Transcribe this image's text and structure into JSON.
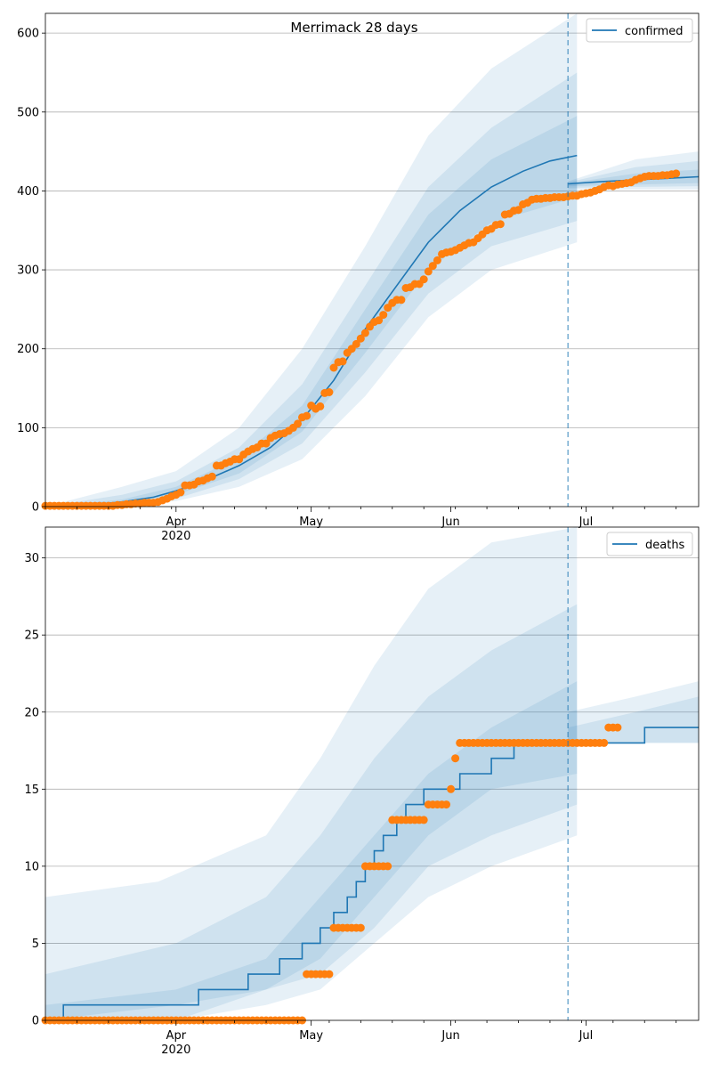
{
  "chart_data": [
    {
      "type": "line",
      "panel": "top",
      "title": "Merrimack 28 days",
      "legend": [
        "confirmed"
      ],
      "legend_position": "top-right",
      "grid": "y",
      "ylim": [
        0,
        625
      ],
      "yticks": [
        0,
        100,
        200,
        300,
        400,
        500,
        600
      ],
      "xlim": [
        "2020-03-03",
        "2020-07-26"
      ],
      "xtick_labels": [
        {
          "date": "2020-04-01",
          "label": "Apr",
          "sub": "2020"
        },
        {
          "date": "2020-05-01",
          "label": "May"
        },
        {
          "date": "2020-06-01",
          "label": "Jun"
        },
        {
          "date": "2020-07-01",
          "label": "Jul"
        }
      ],
      "forecast_start": "2020-06-27",
      "model": {
        "name": "confirmed",
        "points": [
          [
            "2020-03-03",
            0
          ],
          [
            "2020-03-13",
            2
          ],
          [
            "2020-03-20",
            6
          ],
          [
            "2020-03-27",
            12
          ],
          [
            "2020-04-01",
            20
          ],
          [
            "2020-04-07",
            32
          ],
          [
            "2020-04-15",
            52
          ],
          [
            "2020-04-22",
            75
          ],
          [
            "2020-04-29",
            110
          ],
          [
            "2020-05-06",
            160
          ],
          [
            "2020-05-13",
            225
          ],
          [
            "2020-05-20",
            280
          ],
          [
            "2020-05-27",
            335
          ],
          [
            "2020-06-03",
            375
          ],
          [
            "2020-06-10",
            405
          ],
          [
            "2020-06-17",
            425
          ],
          [
            "2020-06-23",
            438
          ],
          [
            "2020-06-29",
            445
          ]
        ]
      },
      "bands": [
        {
          "lower": [
            [
              "2020-03-03",
              0
            ],
            [
              "2020-03-20",
              1
            ],
            [
              "2020-04-01",
              7
            ],
            [
              "2020-04-15",
              25
            ],
            [
              "2020-04-29",
              60
            ],
            [
              "2020-05-13",
              140
            ],
            [
              "2020-05-27",
              240
            ],
            [
              "2020-06-10",
              300
            ],
            [
              "2020-06-29",
              335
            ]
          ],
          "upper": [
            [
              "2020-03-03",
              0
            ],
            [
              "2020-03-20",
              25
            ],
            [
              "2020-04-01",
              45
            ],
            [
              "2020-04-15",
              100
            ],
            [
              "2020-04-29",
              200
            ],
            [
              "2020-05-13",
              330
            ],
            [
              "2020-05-27",
              470
            ],
            [
              "2020-06-10",
              555
            ],
            [
              "2020-06-29",
              625
            ]
          ]
        },
        {
          "lower": [
            [
              "2020-03-03",
              0
            ],
            [
              "2020-03-20",
              2
            ],
            [
              "2020-04-01",
              10
            ],
            [
              "2020-04-15",
              35
            ],
            [
              "2020-04-29",
              80
            ],
            [
              "2020-05-13",
              170
            ],
            [
              "2020-05-27",
              270
            ],
            [
              "2020-06-10",
              330
            ],
            [
              "2020-06-29",
              362
            ]
          ],
          "upper": [
            [
              "2020-03-03",
              0
            ],
            [
              "2020-03-20",
              15
            ],
            [
              "2020-04-01",
              32
            ],
            [
              "2020-04-15",
              75
            ],
            [
              "2020-04-29",
              155
            ],
            [
              "2020-05-13",
              280
            ],
            [
              "2020-05-27",
              405
            ],
            [
              "2020-06-10",
              480
            ],
            [
              "2020-06-29",
              550
            ]
          ]
        },
        {
          "lower": [
            [
              "2020-03-03",
              0
            ],
            [
              "2020-03-20",
              4
            ],
            [
              "2020-04-01",
              15
            ],
            [
              "2020-04-15",
              42
            ],
            [
              "2020-04-29",
              95
            ],
            [
              "2020-05-13",
              195
            ],
            [
              "2020-05-27",
              300
            ],
            [
              "2020-06-10",
              360
            ],
            [
              "2020-06-29",
              392
            ]
          ],
          "upper": [
            [
              "2020-03-03",
              0
            ],
            [
              "2020-03-20",
              9
            ],
            [
              "2020-04-01",
              25
            ],
            [
              "2020-04-15",
              62
            ],
            [
              "2020-04-29",
              128
            ],
            [
              "2020-05-13",
              250
            ],
            [
              "2020-05-27",
              370
            ],
            [
              "2020-06-10",
              440
            ],
            [
              "2020-06-29",
              495
            ]
          ]
        }
      ],
      "forecast": {
        "points": [
          [
            "2020-06-27",
            409
          ],
          [
            "2020-07-05",
            412
          ],
          [
            "2020-07-12",
            414
          ],
          [
            "2020-07-19",
            416
          ],
          [
            "2020-07-26",
            418
          ]
        ],
        "bands": [
          {
            "lower": [
              [
                "2020-06-27",
                402
              ],
              [
                "2020-07-26",
                402
              ]
            ],
            "upper": [
              [
                "2020-06-27",
                412
              ],
              [
                "2020-07-12",
                440
              ],
              [
                "2020-07-26",
                450
              ]
            ]
          },
          {
            "lower": [
              [
                "2020-06-27",
                404
              ],
              [
                "2020-07-26",
                406
              ]
            ],
            "upper": [
              [
                "2020-06-27",
                411
              ],
              [
                "2020-07-12",
                430
              ],
              [
                "2020-07-26",
                438
              ]
            ]
          },
          {
            "lower": [
              [
                "2020-06-27",
                406
              ],
              [
                "2020-07-26",
                410
              ]
            ],
            "upper": [
              [
                "2020-06-27",
                410
              ],
              [
                "2020-07-12",
                422
              ],
              [
                "2020-07-26",
                427
              ]
            ]
          }
        ]
      },
      "observed": {
        "start": "2020-03-03",
        "values": [
          1,
          1,
          1,
          1,
          1,
          1,
          1,
          1,
          1,
          1,
          1,
          1,
          1,
          1,
          1,
          1,
          2,
          2,
          3,
          3,
          4,
          4,
          5,
          5,
          5,
          6,
          8,
          10,
          13,
          15,
          18,
          27,
          27,
          28,
          32,
          33,
          36,
          38,
          52,
          52,
          55,
          57,
          60,
          60,
          66,
          70,
          73,
          75,
          80,
          80,
          87,
          90,
          92,
          93,
          96,
          100,
          105,
          113,
          115,
          128,
          124,
          127,
          144,
          145,
          176,
          183,
          184,
          195,
          200,
          206,
          213,
          220,
          228,
          234,
          236,
          243,
          252,
          258,
          262,
          262,
          277,
          278,
          282,
          282,
          288,
          298,
          305,
          312,
          320,
          322,
          323,
          325,
          328,
          331,
          334,
          335,
          340,
          345,
          350,
          352,
          357,
          358,
          370,
          371,
          375,
          376,
          383,
          385,
          389,
          390,
          390,
          391,
          391,
          392,
          392,
          392,
          393,
          394,
          394,
          396,
          397,
          398,
          400,
          402,
          405,
          407,
          406,
          408,
          409,
          410,
          411,
          414,
          416,
          418,
          419,
          419,
          419,
          420,
          420,
          421,
          422
        ]
      }
    },
    {
      "type": "line",
      "panel": "bottom",
      "legend": [
        "deaths"
      ],
      "legend_position": "top-right",
      "grid": "y",
      "ylim": [
        0,
        32
      ],
      "yticks": [
        0,
        5,
        10,
        15,
        20,
        25,
        30
      ],
      "xlim": [
        "2020-03-03",
        "2020-07-26"
      ],
      "xtick_labels": [
        {
          "date": "2020-04-01",
          "label": "Apr",
          "sub": "2020"
        },
        {
          "date": "2020-05-01",
          "label": "May"
        },
        {
          "date": "2020-06-01",
          "label": "Jun"
        },
        {
          "date": "2020-07-01",
          "label": "Jul"
        }
      ],
      "forecast_start": "2020-06-27",
      "model": {
        "name": "deaths",
        "steps": [
          [
            "2020-03-03",
            0
          ],
          [
            "2020-03-07",
            1
          ],
          [
            "2020-04-06",
            2
          ],
          [
            "2020-04-17",
            3
          ],
          [
            "2020-04-24",
            4
          ],
          [
            "2020-04-29",
            5
          ],
          [
            "2020-05-03",
            6
          ],
          [
            "2020-05-06",
            7
          ],
          [
            "2020-05-09",
            8
          ],
          [
            "2020-05-11",
            9
          ],
          [
            "2020-05-13",
            10
          ],
          [
            "2020-05-15",
            11
          ],
          [
            "2020-05-17",
            12
          ],
          [
            "2020-05-20",
            13
          ],
          [
            "2020-05-22",
            14
          ],
          [
            "2020-05-26",
            15
          ],
          [
            "2020-06-03",
            16
          ],
          [
            "2020-06-10",
            17
          ],
          [
            "2020-06-15",
            18
          ],
          [
            "2020-06-29",
            18
          ]
        ]
      },
      "bands": [
        {
          "lower": [
            [
              "2020-03-03",
              0
            ],
            [
              "2020-04-01",
              0
            ],
            [
              "2020-04-21",
              1
            ],
            [
              "2020-05-03",
              2
            ],
            [
              "2020-05-15",
              5
            ],
            [
              "2020-05-27",
              8
            ],
            [
              "2020-06-10",
              10
            ],
            [
              "2020-06-29",
              12
            ]
          ],
          "upper": [
            [
              "2020-03-03",
              8
            ],
            [
              "2020-03-28",
              9
            ],
            [
              "2020-04-21",
              12
            ],
            [
              "2020-05-03",
              17
            ],
            [
              "2020-05-15",
              23
            ],
            [
              "2020-05-27",
              28
            ],
            [
              "2020-06-10",
              31
            ],
            [
              "2020-06-29",
              32
            ]
          ]
        },
        {
          "lower": [
            [
              "2020-03-03",
              0
            ],
            [
              "2020-04-01",
              0
            ],
            [
              "2020-04-21",
              2
            ],
            [
              "2020-05-03",
              3
            ],
            [
              "2020-05-15",
              6
            ],
            [
              "2020-05-27",
              10
            ],
            [
              "2020-06-10",
              12
            ],
            [
              "2020-06-29",
              14
            ]
          ],
          "upper": [
            [
              "2020-03-03",
              3
            ],
            [
              "2020-04-01",
              5
            ],
            [
              "2020-04-21",
              8
            ],
            [
              "2020-05-03",
              12
            ],
            [
              "2020-05-15",
              17
            ],
            [
              "2020-05-27",
              21
            ],
            [
              "2020-06-10",
              24
            ],
            [
              "2020-06-29",
              27
            ]
          ]
        },
        {
          "lower": [
            [
              "2020-03-03",
              0
            ],
            [
              "2020-04-01",
              1
            ],
            [
              "2020-04-21",
              2
            ],
            [
              "2020-05-03",
              4
            ],
            [
              "2020-05-15",
              8
            ],
            [
              "2020-05-27",
              12
            ],
            [
              "2020-06-10",
              15
            ],
            [
              "2020-06-29",
              16
            ]
          ],
          "upper": [
            [
              "2020-03-03",
              1
            ],
            [
              "2020-04-01",
              2
            ],
            [
              "2020-04-21",
              4
            ],
            [
              "2020-05-03",
              8
            ],
            [
              "2020-05-15",
              12
            ],
            [
              "2020-05-27",
              16
            ],
            [
              "2020-06-10",
              19
            ],
            [
              "2020-06-29",
              22
            ]
          ]
        }
      ],
      "forecast": {
        "steps": [
          [
            "2020-06-27",
            18
          ],
          [
            "2020-07-13",
            18
          ],
          [
            "2020-07-14",
            19
          ],
          [
            "2020-07-26",
            19
          ]
        ],
        "bands": [
          {
            "lower": [
              [
                "2020-06-27",
                18
              ],
              [
                "2020-07-26",
                18
              ]
            ],
            "upper": [
              [
                "2020-06-27",
                20
              ],
              [
                "2020-07-12",
                21
              ],
              [
                "2020-07-26",
                22
              ]
            ]
          },
          {
            "lower": [
              [
                "2020-06-27",
                18
              ],
              [
                "2020-07-26",
                18
              ]
            ],
            "upper": [
              [
                "2020-06-27",
                19
              ],
              [
                "2020-07-12",
                20
              ],
              [
                "2020-07-26",
                21
              ]
            ]
          }
        ]
      },
      "observed_runs": [
        {
          "from": "2020-03-03",
          "to": "2020-04-29",
          "value": 0
        },
        {
          "from": "2020-04-30",
          "to": "2020-05-05",
          "value": 3
        },
        {
          "from": "2020-05-06",
          "to": "2020-05-12",
          "value": 6
        },
        {
          "from": "2020-05-13",
          "to": "2020-05-18",
          "value": 10
        },
        {
          "from": "2020-05-19",
          "to": "2020-05-26",
          "value": 13
        },
        {
          "from": "2020-05-27",
          "to": "2020-05-31",
          "value": 14
        },
        {
          "from": "2020-06-01",
          "to": "2020-06-01",
          "value": 15
        },
        {
          "from": "2020-06-02",
          "to": "2020-06-02",
          "value": 17
        },
        {
          "from": "2020-06-03",
          "to": "2020-07-05",
          "value": 18
        },
        {
          "from": "2020-07-06",
          "to": "2020-07-08",
          "value": 19
        }
      ]
    }
  ]
}
